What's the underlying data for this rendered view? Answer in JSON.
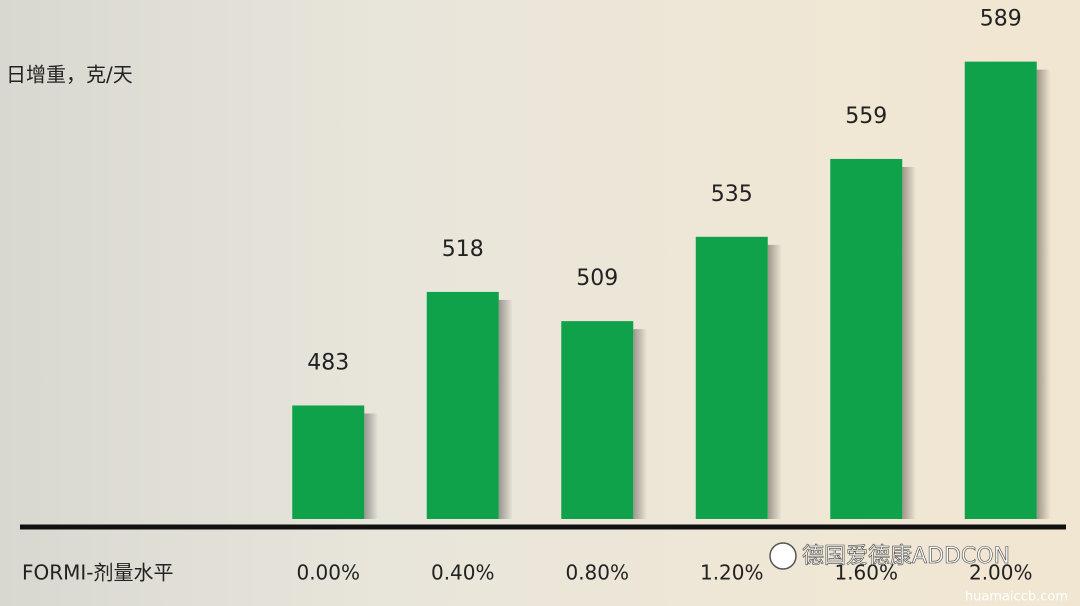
{
  "chart_data": {
    "type": "bar",
    "y_label": "日增重，克/天",
    "x_label": "FORMI-剂量水平",
    "categories": [
      "0.00%",
      "0.40%",
      "0.80%",
      "1.20%",
      "1.60%",
      "2.00%"
    ],
    "values": [
      483,
      518,
      509,
      535,
      559,
      589
    ],
    "color": "#0fa24a",
    "ylim": [
      448,
      608
    ],
    "watermark": "德国爱德康ADDCON",
    "watermark_url": "huamaiccb.com"
  }
}
